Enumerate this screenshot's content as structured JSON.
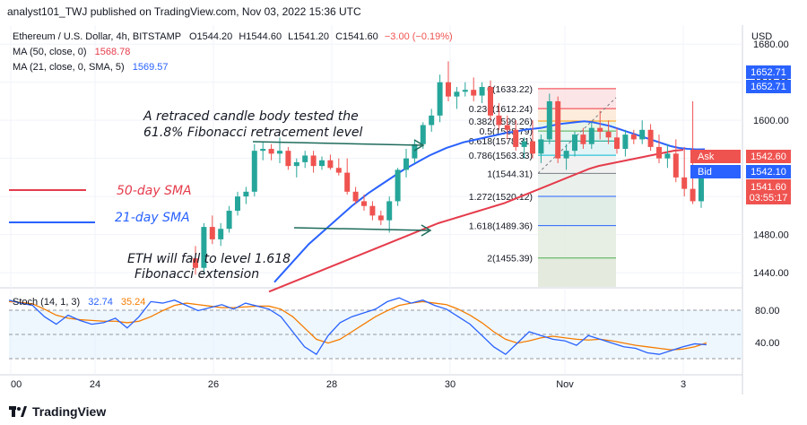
{
  "header": {
    "text": "analyst101_TWJ published on TradingView.com, Nov 03, 2022 15:36 UTC"
  },
  "footer": {
    "brand": "TradingView"
  },
  "legend": {
    "symbol": "Ethereum / U.S. Dollar, 4h, BITSTAMP",
    "o_label": "O",
    "o": "1544.20",
    "h_label": "H",
    "h": "1544.60",
    "l_label": "L",
    "l": "1541.20",
    "c_label": "C",
    "c": "1541.60",
    "change": "−3.00 (−0.19%)",
    "ma50_label": "MA (50, close, 0)",
    "ma50_value": "1568.78",
    "ma21_label": "MA (21, close, 0, SMA, 5)",
    "ma21_value": "1569.57"
  },
  "annotations": {
    "retrace_line1": "A retraced candle body tested the",
    "retrace_line2": "61.8% Fibonacci retracement level",
    "sma50_label": "50-day SMA",
    "sma21_label": "21-day SMA",
    "fall_line1": "ETH will fall to level  1.618",
    "fall_line2": "Fibonacci extension"
  },
  "price_axis": {
    "currency": "USD",
    "ticks": [
      "1680.00",
      "1640.00",
      "1600.00",
      "1560.00",
      "1520.00",
      "1480.00",
      "1440.00"
    ],
    "marker_high_1": "1652.71",
    "marker_high_2": "1652.71",
    "ask_label": "Ask",
    "ask_value": "1542.60",
    "bid_label": "Bid",
    "bid_value": "1542.10",
    "last_value": "1541.60",
    "countdown": "03:55:17"
  },
  "stoch": {
    "label": "Stoch (14, 1, 3)",
    "k_value": "32.74",
    "d_value": "35.24",
    "ticks": [
      "80.00",
      "40.00"
    ]
  },
  "x_axis": {
    "ticks": [
      "00",
      "24",
      "26",
      "28",
      "30",
      "Nov",
      "3"
    ]
  },
  "fib_levels": [
    {
      "label": "0(1633.22)",
      "price": 1633.22
    },
    {
      "label": "0.236(1612.24)",
      "price": 1612.24
    },
    {
      "label": "0.382(1599.26)",
      "price": 1599.26
    },
    {
      "label": "0.5(1588.79)",
      "price": 1588.79
    },
    {
      "label": "0.618(1578.31)",
      "price": 1578.31
    },
    {
      "label": "0.786(1563.33)",
      "price": 1563.33
    },
    {
      "label": "1(1544.31)",
      "price": 1544.31
    },
    {
      "label": "1.272(1520.12)",
      "price": 1520.12
    },
    {
      "label": "1.618(1489.36)",
      "price": 1489.36
    },
    {
      "label": "2(1455.39)",
      "price": 1455.39
    }
  ],
  "colors": {
    "up": "#26a69a",
    "down": "#ef5350",
    "ma50": "#e53c4c",
    "ma21": "#2962ff",
    "stoch_k": "#2962ff",
    "stoch_d": "#f57c00",
    "ask": "#ef5350",
    "bid": "#2962ff",
    "marker": "#2962ff",
    "annotation_text": "#131722",
    "sma50_text": "#e53c4c",
    "sma21_text": "#2962ff"
  },
  "chart_data": {
    "type": "candlestick",
    "timeframe": "4h",
    "ylim": [
      1425,
      1700
    ],
    "candles": [
      {
        "o": 1455,
        "h": 1468,
        "l": 1438,
        "c": 1445
      },
      {
        "o": 1445,
        "h": 1492,
        "l": 1438,
        "c": 1488
      },
      {
        "o": 1488,
        "h": 1500,
        "l": 1470,
        "c": 1475
      },
      {
        "o": 1475,
        "h": 1492,
        "l": 1468,
        "c": 1486
      },
      {
        "o": 1486,
        "h": 1510,
        "l": 1482,
        "c": 1505
      },
      {
        "o": 1505,
        "h": 1525,
        "l": 1500,
        "c": 1520
      },
      {
        "o": 1520,
        "h": 1530,
        "l": 1512,
        "c": 1525
      },
      {
        "o": 1525,
        "h": 1575,
        "l": 1520,
        "c": 1568
      },
      {
        "o": 1568,
        "h": 1578,
        "l": 1558,
        "c": 1570
      },
      {
        "o": 1570,
        "h": 1575,
        "l": 1558,
        "c": 1565
      },
      {
        "o": 1565,
        "h": 1582,
        "l": 1555,
        "c": 1568
      },
      {
        "o": 1568,
        "h": 1572,
        "l": 1548,
        "c": 1552
      },
      {
        "o": 1552,
        "h": 1560,
        "l": 1540,
        "c": 1556
      },
      {
        "o": 1556,
        "h": 1568,
        "l": 1550,
        "c": 1563
      },
      {
        "o": 1563,
        "h": 1568,
        "l": 1545,
        "c": 1552
      },
      {
        "o": 1552,
        "h": 1562,
        "l": 1548,
        "c": 1558
      },
      {
        "o": 1558,
        "h": 1564,
        "l": 1548,
        "c": 1550
      },
      {
        "o": 1550,
        "h": 1560,
        "l": 1542,
        "c": 1545
      },
      {
        "o": 1545,
        "h": 1560,
        "l": 1522,
        "c": 1525
      },
      {
        "o": 1525,
        "h": 1530,
        "l": 1512,
        "c": 1515
      },
      {
        "o": 1515,
        "h": 1522,
        "l": 1505,
        "c": 1510
      },
      {
        "o": 1510,
        "h": 1515,
        "l": 1495,
        "c": 1500
      },
      {
        "o": 1500,
        "h": 1505,
        "l": 1490,
        "c": 1495
      },
      {
        "o": 1495,
        "h": 1520,
        "l": 1482,
        "c": 1515
      },
      {
        "o": 1515,
        "h": 1550,
        "l": 1510,
        "c": 1548
      },
      {
        "o": 1548,
        "h": 1570,
        "l": 1540,
        "c": 1560
      },
      {
        "o": 1560,
        "h": 1580,
        "l": 1555,
        "c": 1575
      },
      {
        "o": 1575,
        "h": 1598,
        "l": 1570,
        "c": 1595
      },
      {
        "o": 1595,
        "h": 1612,
        "l": 1588,
        "c": 1605
      },
      {
        "o": 1605,
        "h": 1648,
        "l": 1598,
        "c": 1640
      },
      {
        "o": 1640,
        "h": 1662,
        "l": 1620,
        "c": 1625
      },
      {
        "o": 1625,
        "h": 1635,
        "l": 1612,
        "c": 1630
      },
      {
        "o": 1630,
        "h": 1640,
        "l": 1625,
        "c": 1632
      },
      {
        "o": 1632,
        "h": 1645,
        "l": 1620,
        "c": 1626
      },
      {
        "o": 1626,
        "h": 1640,
        "l": 1618,
        "c": 1635
      },
      {
        "o": 1635,
        "h": 1642,
        "l": 1600,
        "c": 1605
      },
      {
        "o": 1605,
        "h": 1618,
        "l": 1590,
        "c": 1595
      },
      {
        "o": 1595,
        "h": 1605,
        "l": 1580,
        "c": 1590
      },
      {
        "o": 1590,
        "h": 1600,
        "l": 1568,
        "c": 1572
      },
      {
        "o": 1572,
        "h": 1582,
        "l": 1560,
        "c": 1578
      },
      {
        "o": 1578,
        "h": 1600,
        "l": 1560,
        "c": 1565
      },
      {
        "o": 1565,
        "h": 1585,
        "l": 1555,
        "c": 1580
      },
      {
        "o": 1580,
        "h": 1628,
        "l": 1575,
        "c": 1620
      },
      {
        "o": 1620,
        "h": 1625,
        "l": 1555,
        "c": 1560
      },
      {
        "o": 1560,
        "h": 1575,
        "l": 1548,
        "c": 1568
      },
      {
        "o": 1568,
        "h": 1588,
        "l": 1562,
        "c": 1585
      },
      {
        "o": 1585,
        "h": 1592,
        "l": 1570,
        "c": 1575
      },
      {
        "o": 1575,
        "h": 1598,
        "l": 1570,
        "c": 1592
      },
      {
        "o": 1592,
        "h": 1610,
        "l": 1580,
        "c": 1588
      },
      {
        "o": 1588,
        "h": 1600,
        "l": 1575,
        "c": 1582
      },
      {
        "o": 1582,
        "h": 1592,
        "l": 1565,
        "c": 1570
      },
      {
        "o": 1570,
        "h": 1590,
        "l": 1562,
        "c": 1585
      },
      {
        "o": 1585,
        "h": 1590,
        "l": 1575,
        "c": 1580
      },
      {
        "o": 1580,
        "h": 1600,
        "l": 1575,
        "c": 1590
      },
      {
        "o": 1590,
        "h": 1596,
        "l": 1568,
        "c": 1572
      },
      {
        "o": 1572,
        "h": 1585,
        "l": 1555,
        "c": 1560
      },
      {
        "o": 1560,
        "h": 1575,
        "l": 1550,
        "c": 1565
      },
      {
        "o": 1565,
        "h": 1580,
        "l": 1535,
        "c": 1540
      },
      {
        "o": 1540,
        "h": 1572,
        "l": 1520,
        "c": 1528
      },
      {
        "o": 1528,
        "h": 1620,
        "l": 1512,
        "c": 1515
      },
      {
        "o": 1515,
        "h": 1548,
        "l": 1508,
        "c": 1545
      },
      {
        "o": 1545,
        "h": 1550,
        "l": 1540,
        "c": 1542
      }
    ],
    "ma50": [
      1420,
      1424,
      1428,
      1432,
      1436,
      1440,
      1444,
      1448,
      1452,
      1456,
      1460,
      1464,
      1468,
      1472,
      1476,
      1480,
      1484,
      1488,
      1492,
      1495,
      1498,
      1501,
      1504,
      1507,
      1510,
      1513,
      1517,
      1521,
      1525,
      1529,
      1533,
      1537,
      1541,
      1545,
      1549,
      1552,
      1554,
      1556,
      1558,
      1560,
      1562,
      1564,
      1566,
      1568,
      1569
    ],
    "ma21": [
      1430,
      1440,
      1450,
      1460,
      1470,
      1478,
      1486,
      1494,
      1502,
      1510,
      1517,
      1524,
      1530,
      1536,
      1542,
      1548,
      1553,
      1558,
      1563,
      1567,
      1571,
      1574,
      1577,
      1579,
      1581,
      1583,
      1585,
      1587,
      1588,
      1590,
      1591,
      1592,
      1594,
      1596,
      1597,
      1598,
      1599,
      1598,
      1596,
      1594,
      1591,
      1588,
      1585,
      1582,
      1579,
      1576,
      1573,
      1571,
      1570,
      1569.5,
      1569.57
    ],
    "stoch_k": [
      92,
      88,
      85,
      70,
      60,
      72,
      65,
      60,
      62,
      68,
      55,
      70,
      90,
      88,
      92,
      85,
      78,
      82,
      86,
      80,
      88,
      84,
      80,
      70,
      50,
      30,
      20,
      45,
      62,
      70,
      75,
      80,
      90,
      95,
      88,
      92,
      85,
      80,
      70,
      60,
      45,
      30,
      20,
      35,
      50,
      45,
      40,
      38,
      32,
      45,
      40,
      35,
      30,
      28,
      22,
      20,
      25,
      30,
      34,
      32.74
    ],
    "stoch_d": [
      90,
      89,
      87,
      80,
      72,
      68,
      66,
      65,
      64,
      64,
      62,
      64,
      70,
      78,
      85,
      88,
      86,
      84,
      82,
      82,
      83,
      84,
      84,
      80,
      70,
      55,
      40,
      35,
      40,
      50,
      60,
      70,
      78,
      85,
      88,
      90,
      88,
      86,
      80,
      72,
      62,
      50,
      40,
      35,
      38,
      42,
      44,
      42,
      40,
      39,
      40,
      38,
      35,
      32,
      30,
      28,
      26,
      27,
      30,
      35.24
    ]
  }
}
